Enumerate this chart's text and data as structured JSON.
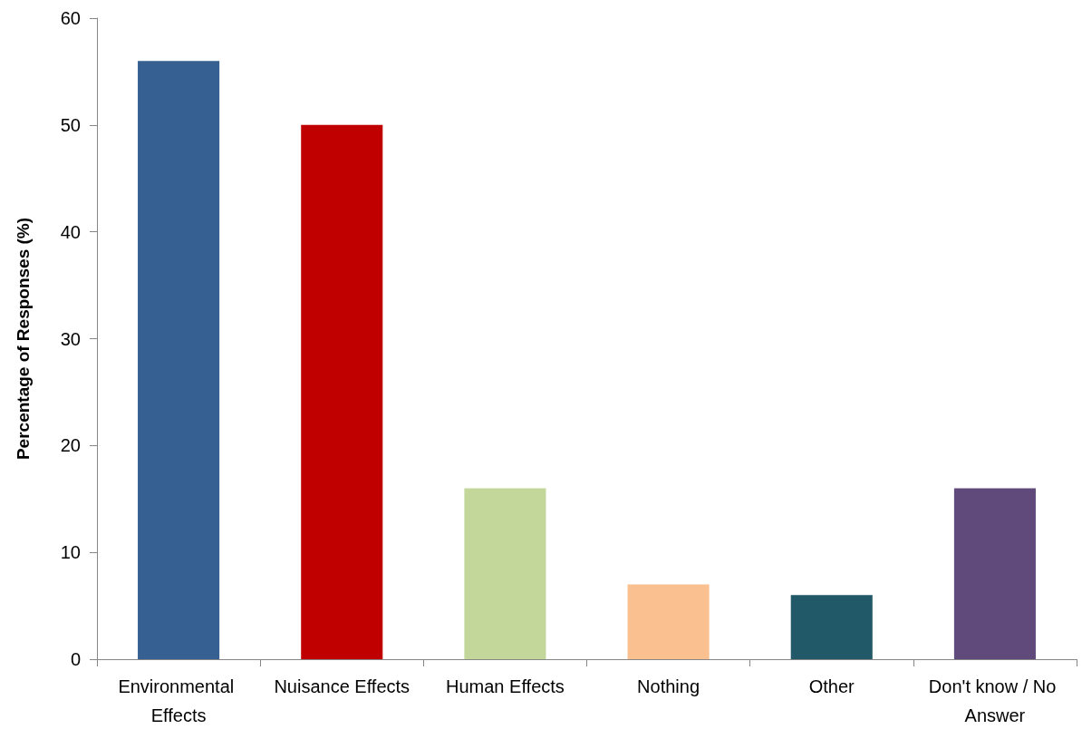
{
  "chart_data": {
    "type": "bar",
    "ylabel": "Percentage of Responses (%)",
    "categories": [
      "Environmental Effects",
      "Nuisance Effects",
      "Human Effects",
      "Nothing",
      "Other",
      "Don't know / No Answer"
    ],
    "values": [
      56,
      50,
      16,
      7,
      6,
      16
    ],
    "colors": [
      "#376092",
      "#c00000",
      "#c4d79b",
      "#fac090",
      "#215968",
      "#604a7b"
    ],
    "ylim": [
      0,
      60
    ],
    "yticks": [
      0,
      10,
      20,
      30,
      40,
      50,
      60
    ],
    "grid": false
  }
}
